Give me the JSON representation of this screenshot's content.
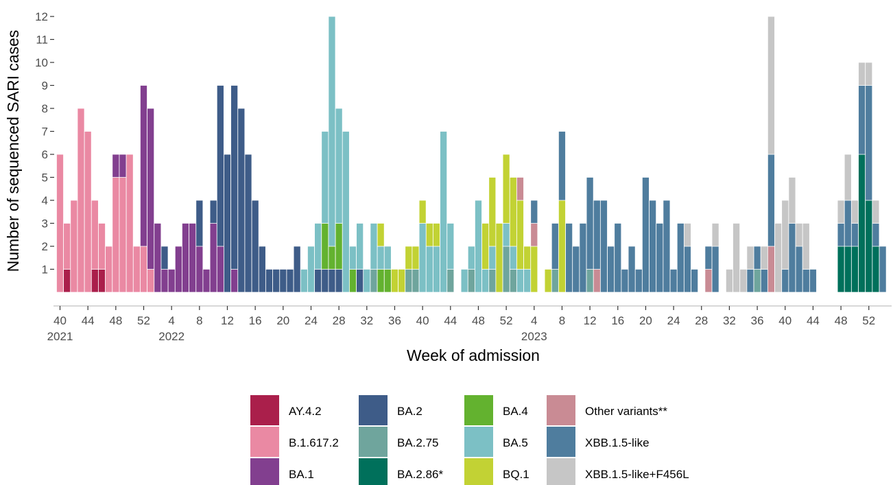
{
  "chart_data": {
    "type": "bar",
    "stacked": true,
    "xlabel": "Week of admission",
    "ylabel": "Number of sequenced SARI cases",
    "ylim": [
      0,
      12
    ],
    "yticks": [
      1,
      2,
      3,
      4,
      5,
      6,
      7,
      8,
      9,
      10,
      11,
      12
    ],
    "x_ticks": [
      {
        "i": 0,
        "label": "40",
        "year": "2021"
      },
      {
        "i": 4,
        "label": "44"
      },
      {
        "i": 8,
        "label": "48"
      },
      {
        "i": 12,
        "label": "52"
      },
      {
        "i": 16,
        "label": "4",
        "year": "2022"
      },
      {
        "i": 20,
        "label": "8"
      },
      {
        "i": 24,
        "label": "12"
      },
      {
        "i": 28,
        "label": "16"
      },
      {
        "i": 32,
        "label": "20"
      },
      {
        "i": 36,
        "label": "24"
      },
      {
        "i": 40,
        "label": "28"
      },
      {
        "i": 44,
        "label": "32"
      },
      {
        "i": 48,
        "label": "36"
      },
      {
        "i": 52,
        "label": "40"
      },
      {
        "i": 56,
        "label": "44"
      },
      {
        "i": 60,
        "label": "48"
      },
      {
        "i": 64,
        "label": "52"
      },
      {
        "i": 68,
        "label": "4",
        "year": "2023"
      },
      {
        "i": 72,
        "label": "8"
      },
      {
        "i": 76,
        "label": "12"
      },
      {
        "i": 80,
        "label": "16"
      },
      {
        "i": 84,
        "label": "20"
      },
      {
        "i": 88,
        "label": "24"
      },
      {
        "i": 92,
        "label": "28"
      },
      {
        "i": 96,
        "label": "32"
      },
      {
        "i": 100,
        "label": "36"
      },
      {
        "i": 104,
        "label": "40"
      },
      {
        "i": 108,
        "label": "44"
      },
      {
        "i": 112,
        "label": "48"
      },
      {
        "i": 116,
        "label": "52"
      }
    ],
    "n_weeks": 119,
    "categories": [
      "AY.4.2",
      "B.1.617.2",
      "BA.1",
      "BA.2",
      "BA.2.75",
      "BA.2.86*",
      "BA.4",
      "BA.5",
      "BQ.1",
      "Other variants**",
      "XBB.1.5-like",
      "XBB.1.5-like+F456L"
    ],
    "colors": {
      "AY.4.2": "#aa1f4b",
      "B.1.617.2": "#ea89a3",
      "BA.1": "#823f8f",
      "BA.2": "#3e5c88",
      "BA.2.75": "#6fa59d",
      "BA.2.86*": "#00705b",
      "BA.4": "#63b22f",
      "BA.5": "#7cc0c5",
      "BQ.1": "#c2d234",
      "Other variants**": "#c98b94",
      "XBB.1.5-like": "#4f7d9e",
      "XBB.1.5-like+F456L": "#c6c6c6"
    },
    "series": [
      {
        "name": "AY.4.2",
        "points": [
          [
            1,
            1
          ],
          [
            5,
            1
          ],
          [
            6,
            1
          ]
        ]
      },
      {
        "name": "B.1.617.2",
        "points": [
          [
            0,
            6
          ],
          [
            1,
            2
          ],
          [
            2,
            4
          ],
          [
            3,
            8
          ],
          [
            4,
            7
          ],
          [
            5,
            3
          ],
          [
            6,
            2
          ],
          [
            7,
            2
          ],
          [
            8,
            5
          ],
          [
            9,
            5
          ],
          [
            10,
            6
          ],
          [
            11,
            2
          ],
          [
            12,
            2
          ],
          [
            13,
            1
          ]
        ]
      },
      {
        "name": "BA.1",
        "points": [
          [
            8,
            1
          ],
          [
            9,
            1
          ],
          [
            12,
            7
          ],
          [
            13,
            7
          ],
          [
            14,
            3
          ],
          [
            15,
            1
          ],
          [
            16,
            1
          ],
          [
            17,
            2
          ],
          [
            18,
            3
          ],
          [
            19,
            3
          ],
          [
            20,
            2
          ],
          [
            21,
            1
          ],
          [
            22,
            3
          ],
          [
            23,
            2
          ],
          [
            25,
            1
          ]
        ]
      },
      {
        "name": "BA.2",
        "points": [
          [
            15,
            1
          ],
          [
            20,
            2
          ],
          [
            22,
            1
          ],
          [
            23,
            7
          ],
          [
            24,
            6
          ],
          [
            25,
            8
          ],
          [
            26,
            8
          ],
          [
            27,
            6
          ],
          [
            28,
            4
          ],
          [
            29,
            2
          ],
          [
            30,
            1
          ],
          [
            31,
            1
          ],
          [
            32,
            1
          ],
          [
            33,
            1
          ],
          [
            34,
            2
          ],
          [
            37,
            1
          ],
          [
            38,
            1
          ],
          [
            39,
            1
          ],
          [
            40,
            1
          ],
          [
            43,
            1
          ]
        ]
      },
      {
        "name": "BA.2.75",
        "points": [
          [
            45,
            1
          ],
          [
            50,
            1
          ],
          [
            51,
            1
          ],
          [
            56,
            1
          ],
          [
            59,
            1
          ],
          [
            62,
            1
          ],
          [
            64,
            2
          ],
          [
            65,
            1
          ],
          [
            71,
            1
          ],
          [
            76,
            1
          ],
          [
            100,
            1
          ]
        ]
      },
      {
        "name": "BA.2.86*",
        "points": [
          [
            112,
            2
          ],
          [
            113,
            2
          ],
          [
            114,
            2
          ],
          [
            115,
            6
          ],
          [
            116,
            4
          ],
          [
            117,
            2
          ]
        ]
      },
      {
        "name": "BA.4",
        "points": [
          [
            38,
            2
          ],
          [
            39,
            1
          ],
          [
            40,
            2
          ],
          [
            42,
            1
          ],
          [
            46,
            1
          ],
          [
            47,
            1
          ]
        ]
      },
      {
        "name": "BA.5",
        "points": [
          [
            35,
            1
          ],
          [
            36,
            2
          ],
          [
            37,
            2
          ],
          [
            38,
            4
          ],
          [
            39,
            10
          ],
          [
            40,
            5
          ],
          [
            41,
            7
          ],
          [
            42,
            1
          ],
          [
            43,
            2
          ],
          [
            44,
            1
          ],
          [
            45,
            2
          ],
          [
            46,
            1
          ],
          [
            47,
            1
          ],
          [
            52,
            3
          ],
          [
            53,
            2
          ],
          [
            54,
            2
          ],
          [
            55,
            7
          ],
          [
            56,
            2
          ],
          [
            58,
            1
          ],
          [
            59,
            1
          ],
          [
            60,
            4
          ],
          [
            61,
            1
          ],
          [
            62,
            1
          ],
          [
            64,
            1
          ],
          [
            65,
            1
          ],
          [
            66,
            1
          ],
          [
            67,
            1
          ]
        ]
      },
      {
        "name": "BQ.1",
        "points": [
          [
            46,
            1
          ],
          [
            48,
            1
          ],
          [
            49,
            1
          ],
          [
            50,
            1
          ],
          [
            51,
            1
          ],
          [
            52,
            1
          ],
          [
            53,
            1
          ],
          [
            54,
            1
          ],
          [
            61,
            2
          ],
          [
            62,
            3
          ],
          [
            63,
            3
          ],
          [
            64,
            3
          ],
          [
            65,
            3
          ],
          [
            66,
            3
          ],
          [
            67,
            1
          ],
          [
            68,
            2
          ],
          [
            70,
            1
          ],
          [
            72,
            4
          ]
        ]
      },
      {
        "name": "Other variants**",
        "points": [
          [
            66,
            1
          ],
          [
            68,
            1
          ],
          [
            77,
            1
          ],
          [
            93,
            1
          ],
          [
            102,
            2
          ]
        ]
      },
      {
        "name": "XBB.1.5-like",
        "points": [
          [
            68,
            1
          ],
          [
            71,
            2
          ],
          [
            72,
            3
          ],
          [
            73,
            3
          ],
          [
            74,
            2
          ],
          [
            75,
            3
          ],
          [
            76,
            4
          ],
          [
            77,
            3
          ],
          [
            78,
            4
          ],
          [
            79,
            2
          ],
          [
            80,
            3
          ],
          [
            81,
            1
          ],
          [
            82,
            2
          ],
          [
            83,
            1
          ],
          [
            84,
            5
          ],
          [
            85,
            4
          ],
          [
            86,
            3
          ],
          [
            87,
            4
          ],
          [
            88,
            1
          ],
          [
            89,
            3
          ],
          [
            90,
            2
          ],
          [
            91,
            1
          ],
          [
            93,
            1
          ],
          [
            94,
            2
          ],
          [
            99,
            1
          ],
          [
            100,
            1
          ],
          [
            101,
            1
          ],
          [
            102,
            4
          ],
          [
            104,
            1
          ],
          [
            105,
            3
          ],
          [
            106,
            2
          ],
          [
            107,
            1
          ],
          [
            108,
            1
          ],
          [
            112,
            1
          ],
          [
            113,
            2
          ],
          [
            114,
            1
          ],
          [
            115,
            3
          ],
          [
            116,
            5
          ],
          [
            117,
            1
          ],
          [
            118,
            2
          ]
        ]
      },
      {
        "name": "XBB.1.5-like+F456L",
        "points": [
          [
            90,
            1
          ],
          [
            94,
            1
          ],
          [
            96,
            1
          ],
          [
            97,
            3
          ],
          [
            98,
            1
          ],
          [
            99,
            1
          ],
          [
            101,
            1
          ],
          [
            102,
            6
          ],
          [
            103,
            3
          ],
          [
            104,
            3
          ],
          [
            105,
            2
          ],
          [
            106,
            1
          ],
          [
            107,
            2
          ],
          [
            112,
            1
          ],
          [
            113,
            2
          ],
          [
            114,
            1
          ],
          [
            115,
            1
          ],
          [
            116,
            1
          ],
          [
            117,
            1
          ]
        ]
      }
    ],
    "legend_position": "bottom",
    "legend_items": [
      "AY.4.2",
      "B.1.617.2",
      "BA.1",
      "BA.2",
      "BA.2.75",
      "BA.2.86*",
      "BA.4",
      "BA.5",
      "BQ.1",
      "Other variants**",
      "XBB.1.5-like",
      "XBB.1.5-like+F456L"
    ],
    "grid": false
  }
}
